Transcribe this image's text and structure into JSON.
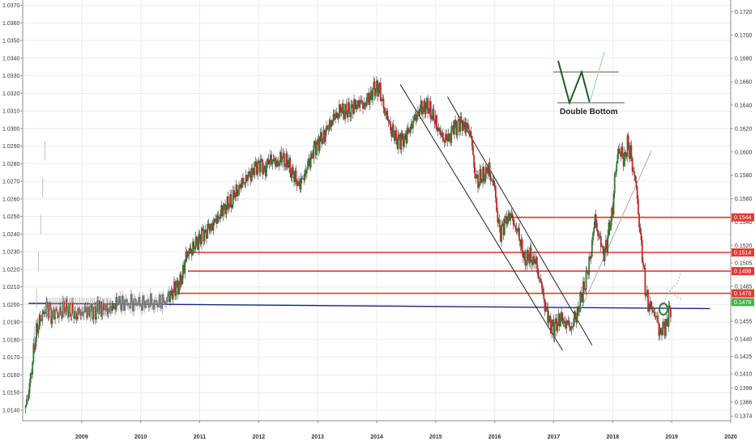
{
  "chart_data": {
    "type": "candlestick",
    "left_axis": {
      "ylim": [
        1.0134,
        1.0373
      ],
      "ticks": [
        "1.0370",
        "1.0360",
        "1.0350",
        "1.0340",
        "1.0330",
        "1.0320",
        "1.0310",
        "1.0300",
        "1.0290",
        "1.0280",
        "1.0270",
        "1.0260",
        "1.0250",
        "1.0240",
        "1.0230",
        "1.0220",
        "1.0210",
        "1.0200",
        "1.0190",
        "1.0180",
        "1.0170",
        "1.0160",
        "1.0150",
        "1.0140"
      ]
    },
    "right_axis": {
      "ylim": [
        0.137,
        0.173
      ],
      "ticks": [
        "0.1720",
        "0.1700",
        "0.1680",
        "0.1660",
        "0.1640",
        "0.1620",
        "0.1600",
        "0.1580",
        "0.1560",
        "0.1540",
        "0.1520",
        "0.1505",
        "0.1485",
        "0.1470",
        "0.1455",
        "0.1440",
        "0.1425",
        "0.1410",
        "0.1398",
        "0.1386",
        "0.1374"
      ]
    },
    "x_axis": {
      "labels": [
        "2009",
        "2010",
        "2011",
        "2012",
        "2013",
        "2014",
        "2015",
        "2016",
        "2017",
        "2018",
        "2019",
        "2020"
      ],
      "range": [
        2008.0,
        2020.0
      ]
    },
    "grid": true,
    "price_tags": [
      {
        "label": "0.1544",
        "value": 0.1544,
        "color": "#e53935"
      },
      {
        "label": "0.1514",
        "value": 0.1514,
        "color": "#e53935"
      },
      {
        "label": "0.1498",
        "value": 0.1498,
        "color": "#e53935"
      },
      {
        "label": "0.1479",
        "value": 0.1479,
        "color": "#e53935"
      },
      {
        "label": "0.1479",
        "value": 0.14715,
        "color": "#4caf50"
      }
    ],
    "horizontal_lines": [
      {
        "value": 0.1544,
        "from": 2016.2,
        "color": "#e53935"
      },
      {
        "value": 0.1514,
        "from": 2010.8,
        "color": "#e53935"
      },
      {
        "value": 0.1498,
        "from": 2010.8,
        "color": "#e53935"
      },
      {
        "value": 0.1479,
        "from": 2010.6,
        "color": "#e53935"
      }
    ],
    "support_line": {
      "from": [
        2008.1,
        1.02007
      ],
      "to": [
        2019.65,
        1.01977
      ],
      "color": "#1a237e"
    },
    "channels": [
      {
        "from": [
          2014.4,
          1.0325
        ],
        "to": [
          2017.15,
          1.0174
        ]
      },
      {
        "from": [
          2015.2,
          1.0318
        ],
        "to": [
          2017.65,
          1.0177
        ]
      }
    ],
    "trend_line": {
      "from": [
        2017.35,
        1.0189
      ],
      "to": [
        2018.65,
        1.0287
      ]
    },
    "annotation": {
      "label": "Double Bottom"
    },
    "series": [
      {
        "values": [
          [
            2008.05,
            1.0141
          ],
          [
            2008.1,
            1.015
          ],
          [
            2008.15,
            1.0163
          ],
          [
            2008.2,
            1.0178
          ],
          [
            2008.25,
            1.0187
          ],
          [
            2008.3,
            1.0192
          ],
          [
            2008.35,
            1.0195
          ],
          [
            2008.4,
            1.0199
          ],
          [
            2008.45,
            1.0197
          ],
          [
            2008.5,
            1.0193
          ],
          [
            2008.55,
            1.0196
          ],
          [
            2008.6,
            1.0194
          ],
          [
            2008.7,
            1.0198
          ],
          [
            2008.8,
            1.0197
          ],
          [
            2008.9,
            1.0195
          ],
          [
            2009.0,
            1.0196
          ],
          [
            2009.1,
            1.0197
          ],
          [
            2009.2,
            1.0196
          ],
          [
            2009.3,
            1.0198
          ],
          [
            2009.4,
            1.0197
          ],
          [
            2009.5,
            1.0197
          ],
          [
            2009.6,
            1.0201
          ],
          [
            2009.8,
            1.0201
          ],
          [
            2010.0,
            1.0201
          ],
          [
            2010.2,
            1.0201
          ],
          [
            2010.4,
            1.0201
          ],
          [
            2010.5,
            1.0206
          ],
          [
            2010.6,
            1.0209
          ],
          [
            2010.7,
            1.0214
          ],
          [
            2010.75,
            1.0225
          ],
          [
            2010.8,
            1.0229
          ],
          [
            2010.9,
            1.0233
          ],
          [
            2011.0,
            1.0238
          ],
          [
            2011.1,
            1.0242
          ],
          [
            2011.2,
            1.0245
          ],
          [
            2011.3,
            1.0249
          ],
          [
            2011.4,
            1.0254
          ],
          [
            2011.5,
            1.0257
          ],
          [
            2011.6,
            1.0262
          ],
          [
            2011.7,
            1.0268
          ],
          [
            2011.8,
            1.0272
          ],
          [
            2011.9,
            1.0276
          ],
          [
            2012.0,
            1.0281
          ],
          [
            2012.1,
            1.0277
          ],
          [
            2012.2,
            1.0283
          ],
          [
            2012.3,
            1.028
          ],
          [
            2012.4,
            1.0283
          ],
          [
            2012.5,
            1.0279
          ],
          [
            2012.6,
            1.0272
          ],
          [
            2012.7,
            1.0268
          ],
          [
            2012.8,
            1.0276
          ],
          [
            2012.9,
            1.0286
          ],
          [
            2013.0,
            1.0292
          ],
          [
            2013.1,
            1.0296
          ],
          [
            2013.2,
            1.0302
          ],
          [
            2013.3,
            1.0307
          ],
          [
            2013.4,
            1.031
          ],
          [
            2013.5,
            1.0309
          ],
          [
            2013.6,
            1.0312
          ],
          [
            2013.7,
            1.0315
          ],
          [
            2013.8,
            1.0314
          ],
          [
            2013.9,
            1.032
          ],
          [
            2014.0,
            1.0324
          ],
          [
            2014.05,
            1.0322
          ],
          [
            2014.1,
            1.0314
          ],
          [
            2014.2,
            1.0303
          ],
          [
            2014.3,
            1.0295
          ],
          [
            2014.4,
            1.0292
          ],
          [
            2014.5,
            1.0296
          ],
          [
            2014.6,
            1.0303
          ],
          [
            2014.7,
            1.031
          ],
          [
            2014.8,
            1.0313
          ],
          [
            2014.9,
            1.0311
          ],
          [
            2015.0,
            1.0303
          ],
          [
            2015.1,
            1.0295
          ],
          [
            2015.2,
            1.0293
          ],
          [
            2015.3,
            1.03
          ],
          [
            2015.4,
            1.0303
          ],
          [
            2015.5,
            1.0302
          ],
          [
            2015.6,
            1.0298
          ],
          [
            2015.65,
            1.0277
          ],
          [
            2015.7,
            1.027
          ],
          [
            2015.8,
            1.0273
          ],
          [
            2015.9,
            1.0276
          ],
          [
            2016.0,
            1.0265
          ],
          [
            2016.05,
            1.0248
          ],
          [
            2016.1,
            1.024
          ],
          [
            2016.15,
            1.0245
          ],
          [
            2016.25,
            1.0252
          ],
          [
            2016.35,
            1.0245
          ],
          [
            2016.45,
            1.0235
          ],
          [
            2016.5,
            1.0225
          ],
          [
            2016.6,
            1.0227
          ],
          [
            2016.7,
            1.0223
          ],
          [
            2016.8,
            1.0208
          ],
          [
            2016.9,
            1.0192
          ],
          [
            2017.0,
            1.0186
          ],
          [
            2017.1,
            1.0193
          ],
          [
            2017.2,
            1.019
          ],
          [
            2017.3,
            1.0188
          ],
          [
            2017.4,
            1.0196
          ],
          [
            2017.5,
            1.0208
          ],
          [
            2017.6,
            1.0222
          ],
          [
            2017.7,
            1.0248
          ],
          [
            2017.8,
            1.0233
          ],
          [
            2017.85,
            1.0228
          ],
          [
            2017.9,
            1.0235
          ],
          [
            2018.0,
            1.0256
          ],
          [
            2018.05,
            1.0278
          ],
          [
            2018.1,
            1.0288
          ],
          [
            2018.2,
            1.0283
          ],
          [
            2018.25,
            1.0291
          ],
          [
            2018.3,
            1.0286
          ],
          [
            2018.4,
            1.0265
          ],
          [
            2018.45,
            1.0245
          ],
          [
            2018.5,
            1.0228
          ],
          [
            2018.55,
            1.021
          ],
          [
            2018.6,
            1.02
          ],
          [
            2018.7,
            1.0197
          ],
          [
            2018.8,
            1.0185
          ],
          [
            2018.9,
            1.0188
          ],
          [
            2018.95,
            1.0195
          ],
          [
            2019.0,
            1.0199
          ]
        ]
      }
    ]
  }
}
